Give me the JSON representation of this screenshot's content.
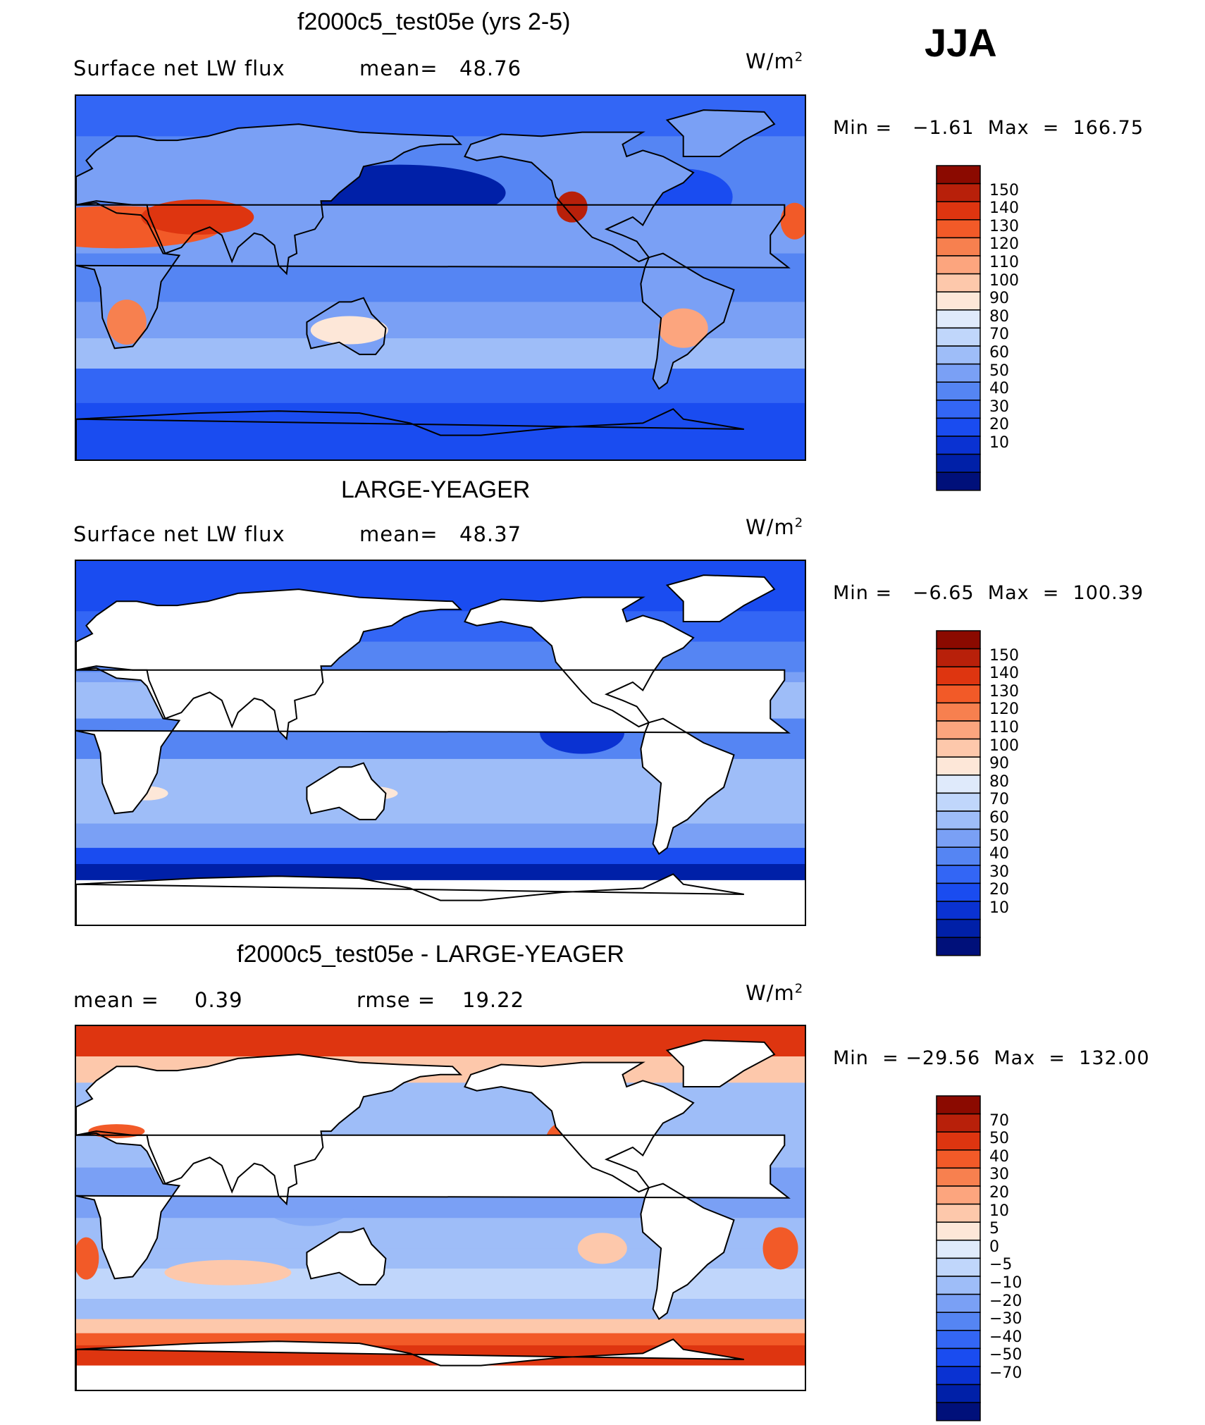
{
  "season": "JJA",
  "panels": [
    {
      "title": "f2000c5_test05e (yrs 2-5)",
      "left_a": "Surface net LW flux",
      "left_b": "mean=",
      "left_b_val": "48.76",
      "units": "W/m",
      "units_sup": "2",
      "minmax": "Min =   −1.61  Max  =  166.75",
      "type": "model",
      "colorbar": {
        "colors": [
          "#00107a",
          "#0020a8",
          "#0a32d2",
          "#1a4cf0",
          "#3366f5",
          "#5585f3",
          "#7aa0f5",
          "#9ebdf8",
          "#c0d6fb",
          "#dfeafb",
          "#fde7d8",
          "#fdc8ab",
          "#fca57e",
          "#f7804f",
          "#f25a28",
          "#de3510",
          "#b8200a",
          "#8b0a00"
        ],
        "labels": [
          "150",
          "140",
          "130",
          "120",
          "110",
          "100",
          "90",
          "80",
          "70",
          "60",
          "50",
          "40",
          "30",
          "20",
          "10"
        ]
      }
    },
    {
      "title": "LARGE-YEAGER",
      "left_a": "Surface net LW flux",
      "left_b": "mean=",
      "left_b_val": "48.37",
      "units": "W/m",
      "units_sup": "2",
      "minmax": "Min =   −6.65  Max  =  100.39",
      "type": "obs",
      "colorbar": {
        "colors": [
          "#00107a",
          "#0020a8",
          "#0a32d2",
          "#1a4cf0",
          "#3366f5",
          "#5585f3",
          "#7aa0f5",
          "#9ebdf8",
          "#c0d6fb",
          "#dfeafb",
          "#fde7d8",
          "#fdc8ab",
          "#fca57e",
          "#f7804f",
          "#f25a28",
          "#de3510",
          "#b8200a",
          "#8b0a00"
        ],
        "labels": [
          "150",
          "140",
          "130",
          "120",
          "110",
          "100",
          "90",
          "80",
          "70",
          "60",
          "50",
          "40",
          "30",
          "20",
          "10"
        ]
      }
    },
    {
      "title": "f2000c5_test05e - LARGE-YEAGER",
      "left_a": "mean  =",
      "left_a_val": "0.39",
      "left_b": "rmse  =",
      "left_b_val": "19.22",
      "units": "W/m",
      "units_sup": "2",
      "minmax": "Min  = −29.56  Max  =  132.00",
      "type": "diff",
      "colorbar": {
        "colors": [
          "#00107a",
          "#0020a8",
          "#0a32d2",
          "#1a4cf0",
          "#3366f5",
          "#5585f3",
          "#7aa0f5",
          "#9ebdf8",
          "#c0d6fb",
          "#dfeafb",
          "#fde7d8",
          "#fdc8ab",
          "#fca57e",
          "#f7804f",
          "#f25a28",
          "#de3510",
          "#b8200a",
          "#8b0a00"
        ],
        "labels": [
          "70",
          "50",
          "40",
          "30",
          "20",
          "10",
          "5",
          "0",
          "−5",
          "−10",
          "−20",
          "−30",
          "−40",
          "−50",
          "−70"
        ]
      }
    }
  ]
}
